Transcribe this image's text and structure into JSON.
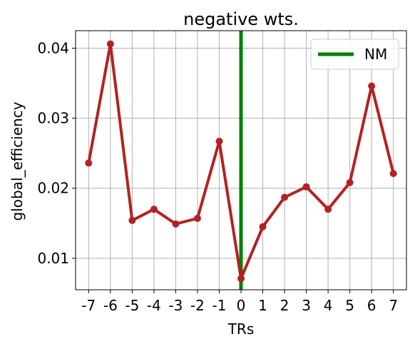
{
  "chart_data": {
    "type": "line",
    "title": "negative wts.",
    "xlabel": "TRs",
    "ylabel": "global_efficiency",
    "x": [
      -7,
      -6,
      -5,
      -4,
      -3,
      -2,
      -1,
      0,
      1,
      2,
      3,
      4,
      5,
      6,
      7
    ],
    "x_tick_labels": [
      "-7",
      "-6",
      "-5",
      "-4",
      "-3",
      "-2",
      "-1",
      "0",
      "1",
      "2",
      "3",
      "4",
      "5",
      "6",
      "7"
    ],
    "y_ticks": [
      0.01,
      0.02,
      0.03,
      0.04
    ],
    "y_tick_labels": [
      "0.01",
      "0.02",
      "0.03",
      "0.04"
    ],
    "xlim": [
      -7.6,
      7.6
    ],
    "ylim": [
      0.0055,
      0.0425
    ],
    "grid": true,
    "series": [
      {
        "values": [
          0.0236,
          0.0406,
          0.0154,
          0.017,
          0.0149,
          0.0157,
          0.0267,
          0.0071,
          0.0145,
          0.0187,
          0.0202,
          0.017,
          0.0208,
          0.0346,
          0.0221
        ],
        "color": "#b22222"
      }
    ],
    "vline": {
      "name": "NM",
      "x": 0,
      "color": "#008000"
    },
    "legend": {
      "position": "top-right",
      "entries": [
        "NM"
      ]
    }
  }
}
